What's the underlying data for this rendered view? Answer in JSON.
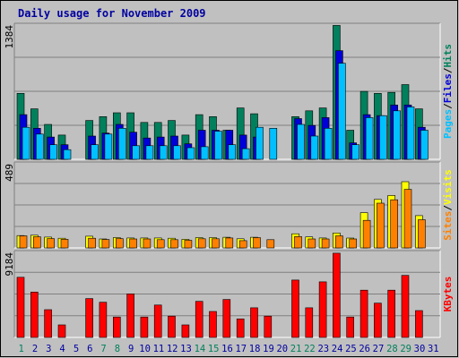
{
  "chart_data": {
    "type": "bar",
    "title": "Daily usage for November 2009",
    "colors": {
      "background": "#c0c0c0",
      "plot": "#c0c0c0",
      "title": "#0000a0",
      "hits": "#00805c",
      "files": "#0000d8",
      "pages": "#00c0ff",
      "visits": "#ffff00",
      "sites": "#ff8000",
      "kbytes": "#ff0000",
      "weekend_day": "#00805c",
      "weekday": "#0000a0"
    },
    "days": [
      "1",
      "2",
      "3",
      "4",
      "5",
      "6",
      "7",
      "8",
      "9",
      "10",
      "11",
      "12",
      "13",
      "14",
      "15",
      "16",
      "17",
      "18",
      "19",
      "20",
      "21",
      "22",
      "23",
      "24",
      "25",
      "26",
      "27",
      "28",
      "29",
      "30",
      "31"
    ],
    "weekend_days": [
      "1",
      "7",
      "8",
      "14",
      "15",
      "21",
      "22",
      "28",
      "29"
    ],
    "panels": [
      {
        "id": "hits-files-pages",
        "ymax": 1384,
        "ymax_label": "1384",
        "legend": [
          "Pages",
          "/",
          "Files",
          "/",
          "Hits"
        ],
        "legend_colors": [
          "#00c0ff",
          "#000000",
          "#0000d8",
          "#000000",
          "#00805c"
        ],
        "series": [
          {
            "name": "Hits",
            "color": "#00805c",
            "values": [
              680,
              520,
              360,
              250,
              0,
              400,
              440,
              480,
              480,
              380,
              380,
              400,
              250,
              460,
              440,
              300,
              530,
              470,
              0,
              0,
              440,
              500,
              530,
              1380,
              300,
              700,
              680,
              690,
              770,
              520,
              0
            ]
          },
          {
            "name": "Files",
            "color": "#0000d8",
            "values": [
              460,
              320,
              230,
              150,
              0,
              240,
              270,
              360,
              280,
              220,
              230,
              240,
              160,
              300,
              300,
              300,
              250,
              230,
              0,
              0,
              420,
              350,
              430,
              1120,
              170,
              460,
              450,
              560,
              560,
              330,
              0
            ]
          },
          {
            "name": "Pages",
            "color": "#00c0ff",
            "values": [
              330,
              260,
              150,
              100,
              0,
              150,
              260,
              320,
              140,
              140,
              140,
              140,
              120,
              130,
              290,
              150,
              110,
              330,
              320,
              0,
              360,
              240,
              320,
              990,
              150,
              430,
              450,
              500,
              540,
              300,
              0
            ]
          }
        ]
      },
      {
        "id": "visits-sites",
        "ymax": 489,
        "ymax_label": "489",
        "legend": [
          "Sites",
          "/",
          "Visits"
        ],
        "legend_colors": [
          "#ff8000",
          "#000000",
          "#ffff00"
        ],
        "series": [
          {
            "name": "Visits",
            "color": "#ffff00",
            "values": [
              72,
              74,
              63,
              56,
              0,
              68,
              52,
              60,
              58,
              58,
              58,
              56,
              50,
              60,
              60,
              62,
              53,
              62,
              0,
              0,
              82,
              64,
              58,
              87,
              57,
              205,
              282,
              305,
              385,
              188,
              0
            ]
          },
          {
            "name": "Sites",
            "color": "#ff8000",
            "values": [
              70,
              65,
              54,
              50,
              0,
              56,
              49,
              54,
              52,
              52,
              48,
              48,
              44,
              53,
              53,
              58,
              42,
              60,
              48,
              0,
              66,
              52,
              52,
              70,
              52,
              160,
              260,
              280,
              340,
              164,
              0
            ]
          }
        ]
      },
      {
        "id": "kbytes",
        "ymax": 9184,
        "ymax_label": "9184",
        "legend": [
          "KBytes"
        ],
        "legend_colors": [
          "#ff0000"
        ],
        "series": [
          {
            "name": "KBytes",
            "color": "#ff0000",
            "values": [
              6500,
              4900,
              3000,
              1350,
              0,
              4200,
              3800,
              2200,
              4700,
              2200,
              3500,
              2300,
              1350,
              3900,
              2800,
              4100,
              2000,
              3200,
              2300,
              0,
              6200,
              3200,
              6000,
              9100,
              2200,
              5100,
              3700,
              5100,
              6700,
              2900,
              0
            ]
          }
        ]
      }
    ]
  }
}
